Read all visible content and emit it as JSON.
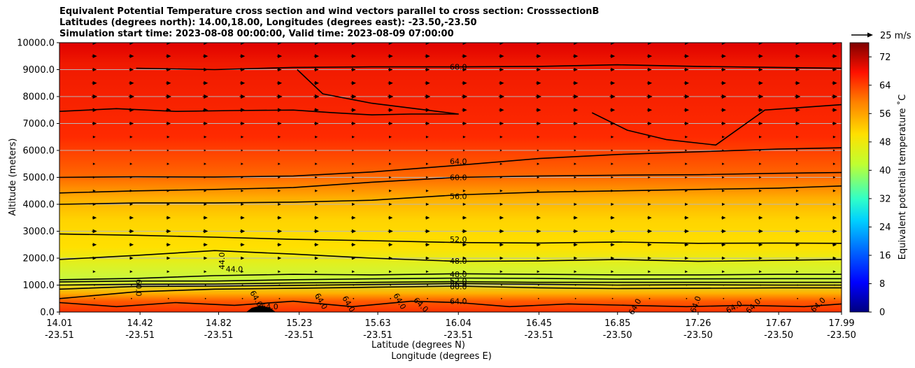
{
  "header": {
    "line1": "Equivalent Potential Temperature cross section and wind vectors parallel to cross section: CrosssectionB",
    "line2": "Latitudes (degrees north): 14.00,18.00, Longitudes (degrees east): -23.50,-23.50",
    "line3": "Simulation start time: 2023-08-08 00:00:00, Valid time: 2023-08-09 07:00:00"
  },
  "chart_data": {
    "type": "contour",
    "title": "Equivalent Potential Temperature cross section and wind vectors parallel to cross section: CrosssectionB",
    "xlabel_lat": "Latitude (degrees N)",
    "xlabel_lon": "Longitude (degrees E)",
    "ylabel": "Altitude (meters)",
    "xlim": [
      14.01,
      17.99
    ],
    "ylim": [
      0,
      10000
    ],
    "x_ticks": [
      {
        "lat": "14.01",
        "lon": "-23.51",
        "v": 14.01
      },
      {
        "lat": "14.42",
        "lon": "-23.51",
        "v": 14.42
      },
      {
        "lat": "14.82",
        "lon": "-23.51",
        "v": 14.82
      },
      {
        "lat": "15.23",
        "lon": "-23.51",
        "v": 15.23
      },
      {
        "lat": "15.63",
        "lon": "-23.51",
        "v": 15.63
      },
      {
        "lat": "16.04",
        "lon": "-23.51",
        "v": 16.04
      },
      {
        "lat": "16.45",
        "lon": "-23.51",
        "v": 16.45
      },
      {
        "lat": "16.85",
        "lon": "-23.50",
        "v": 16.85
      },
      {
        "lat": "17.26",
        "lon": "-23.50",
        "v": 17.26
      },
      {
        "lat": "17.67",
        "lon": "-23.50",
        "v": 17.67
      },
      {
        "lat": "17.99",
        "lon": "-23.50",
        "v": 17.99
      }
    ],
    "y_ticks": [
      "0.0",
      "1000.0",
      "2000.0",
      "3000.0",
      "4000.0",
      "5000.0",
      "6000.0",
      "7000.0",
      "8000.0",
      "9000.0",
      "10000.0"
    ],
    "y_tick_values": [
      0,
      1000,
      2000,
      3000,
      4000,
      5000,
      6000,
      7000,
      8000,
      9000,
      10000
    ],
    "colorbar": {
      "label": "Equivalent potential temperature ˚C",
      "range": [
        0,
        76
      ],
      "ticks": [
        "0",
        "8",
        "16",
        "24",
        "32",
        "40",
        "48",
        "56",
        "64",
        "72"
      ],
      "tick_values": [
        0,
        8,
        16,
        24,
        32,
        40,
        48,
        56,
        64,
        72
      ]
    },
    "quiver_key": {
      "label": "25 m/s",
      "speed": 25
    },
    "contour_levels": [
      44,
      48,
      52,
      56,
      60,
      64,
      68
    ],
    "contours": [
      {
        "level": 68,
        "label": "68.0",
        "label_x": 16.04,
        "label_y": 9100,
        "x": [
          14.4,
          14.8,
          15.2,
          15.6,
          16.04,
          16.45,
          16.85,
          17.26,
          17.67,
          17.99
        ],
        "y": [
          9050,
          9000,
          9080,
          9100,
          9100,
          9120,
          9180,
          9120,
          9080,
          9050
        ]
      },
      {
        "level": 68,
        "label": "",
        "label_x": null,
        "label_y": null,
        "x": [
          14.01,
          14.3,
          14.6,
          14.9,
          15.2,
          15.4,
          15.6,
          15.8,
          16.04,
          15.6,
          15.35,
          15.22
        ],
        "y": [
          7450,
          7550,
          7450,
          7480,
          7500,
          7400,
          7320,
          7350,
          7350,
          7750,
          8100,
          9000
        ]
      },
      {
        "level": 64,
        "label": "",
        "label_x": null,
        "label_y": null,
        "x": [
          16.72,
          16.9,
          17.1,
          17.35,
          17.6,
          17.99
        ],
        "y": [
          7400,
          6750,
          6400,
          6200,
          7500,
          7700
        ]
      },
      {
        "level": 64,
        "label": "64.0",
        "label_x": 16.04,
        "label_y": 5600,
        "x": [
          14.01,
          14.4,
          14.8,
          15.2,
          15.6,
          16.04,
          16.45,
          16.85,
          17.26,
          17.67,
          17.99
        ],
        "y": [
          5000,
          5020,
          5010,
          5050,
          5200,
          5450,
          5700,
          5850,
          5950,
          6050,
          6100
        ]
      },
      {
        "level": 60,
        "label": "60.0",
        "label_x": 16.04,
        "label_y": 5000,
        "x": [
          14.01,
          14.4,
          14.8,
          15.2,
          15.6,
          16.04,
          16.45,
          16.85,
          17.26,
          17.67,
          17.99
        ],
        "y": [
          4420,
          4500,
          4550,
          4620,
          4820,
          5000,
          5050,
          5080,
          5100,
          5150,
          5180
        ]
      },
      {
        "level": 56,
        "label": "56.0",
        "label_x": 16.04,
        "label_y": 4300,
        "x": [
          14.01,
          14.4,
          14.8,
          15.2,
          15.6,
          16.04,
          16.45,
          16.85,
          17.26,
          17.67,
          17.99
        ],
        "y": [
          4000,
          4050,
          4050,
          4080,
          4150,
          4350,
          4450,
          4500,
          4550,
          4600,
          4680
        ]
      },
      {
        "level": 52,
        "label": "52.0",
        "label_x": 16.04,
        "label_y": 2700,
        "x": [
          14.01,
          14.4,
          14.8,
          15.2,
          15.6,
          16.04,
          16.45,
          16.85,
          17.26,
          17.67,
          17.99
        ],
        "y": [
          2900,
          2850,
          2780,
          2700,
          2650,
          2580,
          2560,
          2600,
          2550,
          2560,
          2550
        ]
      },
      {
        "level": 48,
        "label": "48.0",
        "label_x": 16.04,
        "label_y": 1900,
        "x": [
          14.01,
          14.4,
          14.8,
          15.2,
          15.6,
          16.04,
          16.45,
          16.85,
          17.26,
          17.67,
          17.99
        ],
        "y": [
          1950,
          2100,
          2280,
          2150,
          2000,
          1880,
          1900,
          1950,
          1880,
          1920,
          1950
        ]
      },
      {
        "level": 44,
        "label": "44.0",
        "label_x": 14.9,
        "label_y": 1600,
        "x": [
          14.01,
          14.4,
          14.8,
          15.2,
          15.6,
          16.04,
          16.45,
          16.85,
          17.26,
          17.67,
          17.99
        ],
        "y": [
          1200,
          1250,
          1350,
          1400,
          1380,
          1420,
          1400,
          1380,
          1380,
          1400,
          1400
        ]
      },
      {
        "level": 48,
        "label": "48.0",
        "label_x": 16.04,
        "label_y": 1400,
        "x": [
          14.01,
          14.4,
          14.8,
          15.2,
          15.6,
          16.04,
          16.45,
          16.85,
          17.26,
          17.67,
          17.99
        ],
        "y": [
          1120,
          1150,
          1150,
          1200,
          1230,
          1260,
          1250,
          1220,
          1230,
          1240,
          1240
        ]
      },
      {
        "level": 52,
        "label": "52.0",
        "label_x": 16.04,
        "label_y": 1150,
        "x": [
          14.01,
          14.4,
          14.8,
          15.2,
          15.6,
          16.04,
          16.45,
          16.85,
          17.26,
          17.67,
          17.99
        ],
        "y": [
          1000,
          1030,
          1040,
          1080,
          1100,
          1130,
          1100,
          1100,
          1100,
          1100,
          1100
        ]
      },
      {
        "level": 56,
        "label": "56.0",
        "label_x": 16.04,
        "label_y": 1050,
        "x": [
          14.01,
          14.4,
          14.8,
          15.2,
          15.6,
          16.04,
          16.45,
          16.85,
          17.26,
          17.67,
          17.99
        ],
        "y": [
          850,
          950,
          960,
          990,
          1020,
          1060,
          1030,
          1000,
          1010,
          1000,
          1000
        ]
      },
      {
        "level": 60,
        "label": "60.0",
        "label_x": 16.04,
        "label_y": 950,
        "x": [
          14.01,
          14.4,
          14.8,
          15.2,
          15.6,
          16.04,
          16.45,
          16.85,
          17.26,
          17.67,
          17.99
        ],
        "y": [
          500,
          750,
          850,
          880,
          920,
          960,
          900,
          870,
          880,
          900,
          900
        ]
      },
      {
        "level": 64,
        "label": "64.0",
        "label_x": 16.04,
        "label_y": 400,
        "x": [
          14.01,
          14.3,
          14.6,
          14.9,
          15.2,
          15.5,
          15.8,
          16.04,
          16.3,
          16.6,
          16.9,
          17.2,
          17.5,
          17.8,
          17.99
        ],
        "y": [
          350,
          200,
          350,
          250,
          400,
          200,
          400,
          350,
          200,
          300,
          250,
          200,
          250,
          200,
          300
        ]
      }
    ],
    "contour_extra_labels": [
      {
        "label": "60.0",
        "x": 14.4,
        "y": 900,
        "rot": 90
      },
      {
        "label": "44.0",
        "x": 14.85,
        "y": 1900,
        "rot": -90
      },
      {
        "label": "64.0",
        "x": 15.0,
        "y": 450,
        "rot": 60
      },
      {
        "label": "64.0",
        "x": 15.08,
        "y": 100,
        "rot": 0
      },
      {
        "label": "64.0",
        "x": 15.33,
        "y": 350,
        "rot": 60
      },
      {
        "label": "64.0",
        "x": 15.47,
        "y": 250,
        "rot": 60
      },
      {
        "label": "64.0",
        "x": 15.73,
        "y": 350,
        "rot": 60
      },
      {
        "label": "64.0",
        "x": 15.84,
        "y": 200,
        "rot": 45
      },
      {
        "label": "64.0",
        "x": 16.95,
        "y": 150,
        "rot": -60
      },
      {
        "label": "64.0",
        "x": 17.26,
        "y": 250,
        "rot": -70
      },
      {
        "label": "64.0",
        "x": 17.45,
        "y": 100,
        "rot": -30
      },
      {
        "label": "64.0",
        "x": 17.55,
        "y": 150,
        "rot": -45
      },
      {
        "label": "64.0",
        "x": 17.88,
        "y": 200,
        "rot": -45
      }
    ],
    "wind_speed_profile": {
      "altitude": [
        500,
        1000,
        1500,
        2000,
        2500,
        3000,
        3500,
        4000,
        4500,
        5000,
        5500,
        6000,
        6500,
        7000,
        7500,
        8000,
        8500,
        9000,
        9500,
        10000
      ],
      "u_m_s": [
        0,
        0,
        4,
        6,
        7,
        8,
        7,
        5,
        4,
        3,
        3,
        2,
        4,
        7,
        8,
        9,
        8,
        7,
        8,
        9
      ]
    }
  }
}
